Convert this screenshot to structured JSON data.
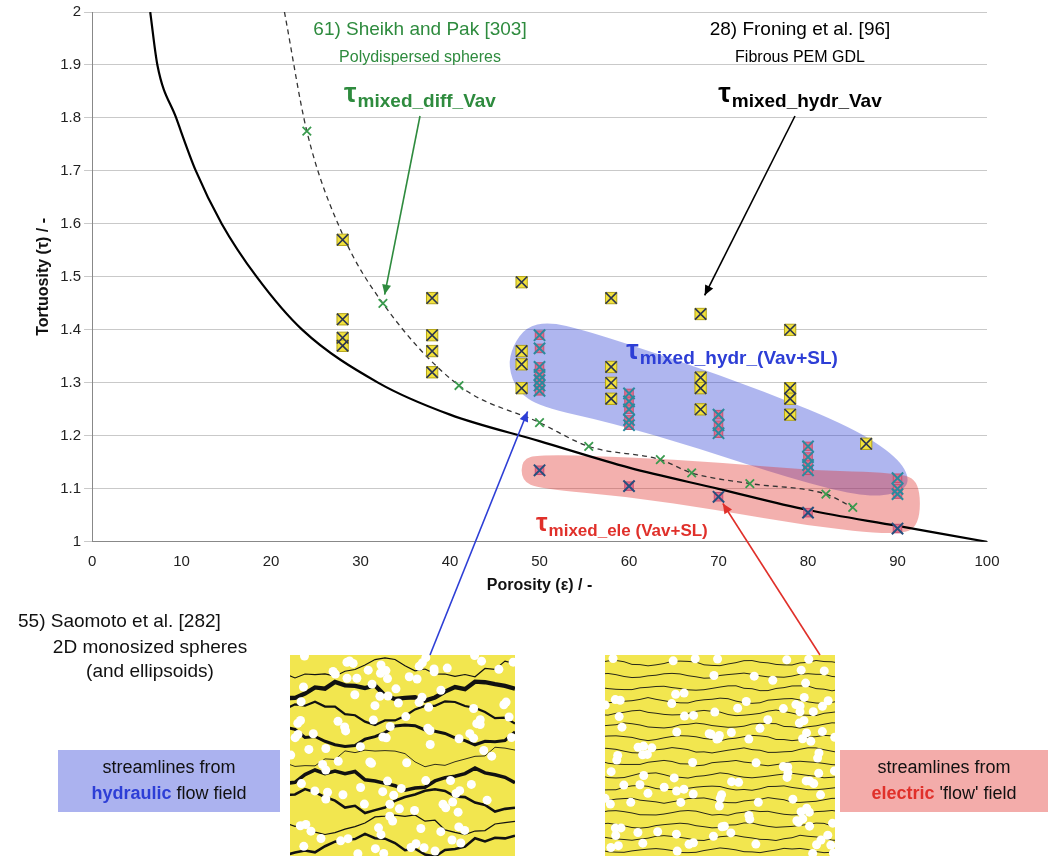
{
  "chart_data": {
    "type": "scatter",
    "x_label": "Porosity (ε) / -",
    "y_label": "Tortuosity (τ) / -",
    "xlim": [
      0,
      100
    ],
    "xticks": [
      0,
      10,
      20,
      30,
      40,
      50,
      60,
      70,
      80,
      90,
      100
    ],
    "ylim": [
      1,
      2
    ],
    "yticks": [
      1,
      1.1,
      1.2,
      1.3,
      1.4,
      1.5,
      1.6,
      1.7,
      1.8,
      1.9,
      2
    ],
    "grid": true,
    "legend": false,
    "series": [
      {
        "type": "line",
        "color": "#000000",
        "line_style": "solid",
        "marker": "none",
        "x": [
          6.5,
          7.3,
          9.4,
          11.6,
          14.5,
          18.4,
          23.5,
          32,
          40,
          50,
          60,
          70,
          80,
          90,
          100
        ],
        "values": [
          2,
          1.9,
          1.8,
          1.7,
          1.6,
          1.5,
          1.4,
          1.3,
          1.24,
          1.19,
          1.14,
          1.1,
          1.06,
          1.03,
          1
        ]
      },
      {
        "type": "line",
        "color": "#333333",
        "line_style": "dashed",
        "marker": "none",
        "x": [
          21.5,
          24,
          28,
          32.5,
          41,
          50,
          55.5,
          63.5,
          67,
          73.5,
          82,
          85
        ],
        "values": [
          2,
          1.775,
          1.58,
          1.45,
          1.295,
          1.225,
          1.18,
          1.155,
          1.13,
          1.11,
          1.09,
          1.065
        ]
      },
      {
        "type": "scatter",
        "color": "#3a9a4e",
        "marker": "x",
        "x": [
          24,
          32.5,
          41,
          50,
          55.5,
          63.5,
          67,
          73.5,
          82,
          85
        ],
        "values": [
          1.775,
          1.45,
          1.295,
          1.225,
          1.18,
          1.155,
          1.13,
          1.11,
          1.09,
          1.065
        ]
      },
      {
        "type": "scatter",
        "color": "#f2e23c",
        "marker": "square_x",
        "x": [
          28,
          28,
          28,
          28,
          38,
          38,
          38,
          38,
          48,
          48,
          48,
          48,
          58,
          58,
          58,
          58,
          68,
          68,
          68,
          68,
          78,
          78,
          78,
          78,
          86.5
        ],
        "values": [
          1.57,
          1.42,
          1.385,
          1.37,
          1.46,
          1.39,
          1.36,
          1.32,
          1.49,
          1.36,
          1.335,
          1.29,
          1.46,
          1.33,
          1.3,
          1.27,
          1.43,
          1.31,
          1.29,
          1.25,
          1.4,
          1.29,
          1.27,
          1.24,
          1.185
        ]
      },
      {
        "type": "scatter",
        "color": "#2b8a9e",
        "marker": "x_square",
        "x": [
          50,
          50,
          50,
          50,
          50,
          50,
          50,
          60,
          60,
          60,
          60,
          60,
          70,
          70,
          70,
          80,
          80,
          80,
          80,
          90,
          90,
          90
        ],
        "values": [
          1.39,
          1.365,
          1.33,
          1.315,
          1.305,
          1.295,
          1.285,
          1.28,
          1.265,
          1.25,
          1.23,
          1.22,
          1.24,
          1.22,
          1.205,
          1.18,
          1.16,
          1.145,
          1.135,
          1.12,
          1.1,
          1.09
        ]
      },
      {
        "type": "scatter",
        "color": "#25507e",
        "marker": "x_square",
        "x": [
          50,
          60,
          70,
          80,
          90
        ],
        "values": [
          1.135,
          1.105,
          1.085,
          1.055,
          1.025
        ]
      }
    ],
    "regions": [
      {
        "symbol": "τ",
        "subscript": "mixed_hydr_(Vav+SL)",
        "color": "#2d3ed6",
        "points": [
          [
            47,
            1.37
          ],
          [
            48.5,
            1.405
          ],
          [
            51,
            1.415
          ],
          [
            55,
            1.4
          ],
          [
            65,
            1.345
          ],
          [
            75,
            1.285
          ],
          [
            85,
            1.215
          ],
          [
            90,
            1.16
          ],
          [
            91.5,
            1.115
          ],
          [
            90,
            1.09
          ],
          [
            86,
            1.085
          ],
          [
            78,
            1.12
          ],
          [
            68,
            1.175
          ],
          [
            58,
            1.225
          ],
          [
            50,
            1.255
          ],
          [
            47.5,
            1.285
          ],
          [
            46.5,
            1.33
          ]
        ]
      },
      {
        "symbol": "τ",
        "subscript": "mixed_ele (Vav+SL)",
        "color": "#e0302a",
        "points": [
          [
            48,
            1.155
          ],
          [
            50,
            1.165
          ],
          [
            60,
            1.16
          ],
          [
            70,
            1.15
          ],
          [
            80,
            1.135
          ],
          [
            90,
            1.13
          ],
          [
            92.5,
            1.115
          ],
          [
            92.5,
            1.03
          ],
          [
            90,
            1.012
          ],
          [
            80,
            1.03
          ],
          [
            70,
            1.06
          ],
          [
            60,
            1.085
          ],
          [
            50,
            1.1
          ],
          [
            48,
            1.115
          ]
        ]
      }
    ],
    "annotations": [
      {
        "lines": [
          "61) Sheikh and Pak [303]",
          "Polydispersed spheres"
        ],
        "symbol": "τ",
        "subscript": "mixed_diff_Vav",
        "color": "#2e8b3e",
        "arrow_to": [
          32.5,
          1.45
        ]
      },
      {
        "lines": [
          "28) Froning et al. [96]",
          "Fibrous PEM GDL"
        ],
        "symbol": "τ",
        "subscript": "mixed_hydr_Vav",
        "color": "#000000",
        "arrow_to": [
          68,
          1.45
        ]
      }
    ],
    "source": {
      "lines": [
        "55) Saomoto et al. [282]",
        "2D monosized spheres",
        "(and ellipsoids)"
      ]
    },
    "insets": [
      {
        "lines": [
          "streamlines from",
          "hydraulic flow field"
        ],
        "emphasis": "hydraulic",
        "color": "#2d3ed6",
        "line_style": "wavy",
        "arrow_to": [
          49,
          1.26
        ]
      },
      {
        "lines": [
          "streamlines from",
          "electric 'flow' field"
        ],
        "emphasis": "electric",
        "color": "#e0302a",
        "line_style": "straight",
        "arrow_to": [
          70,
          1.085
        ]
      }
    ]
  }
}
